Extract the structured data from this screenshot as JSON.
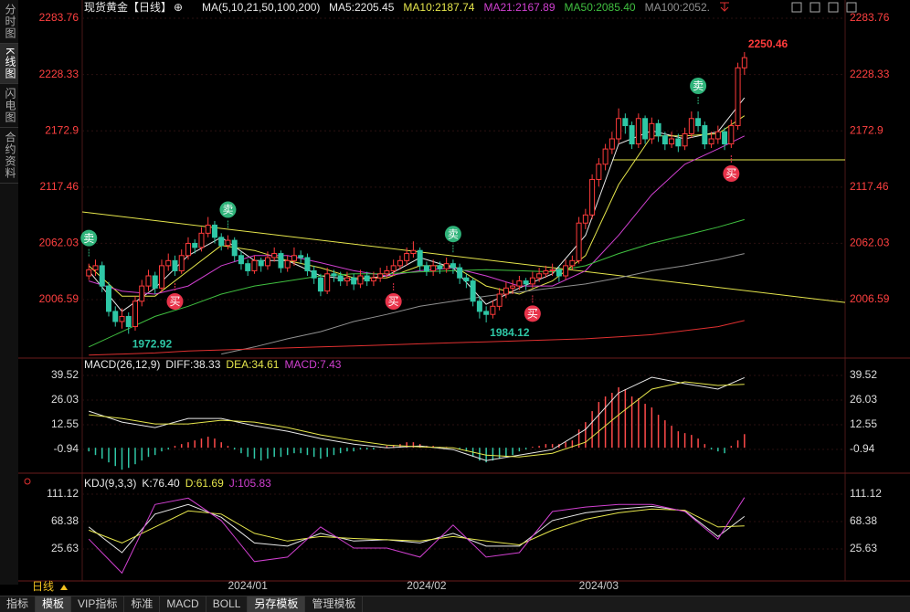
{
  "sidebar": [
    "分时图",
    "K线图",
    "闪电图",
    "合约资料"
  ],
  "sample_x": [
    0,
    5,
    10,
    15,
    20,
    25,
    30,
    35,
    40,
    45,
    50,
    55,
    60,
    65,
    70,
    75,
    80,
    85,
    90,
    95,
    99
  ],
  "price_panel": {
    "title": "现货黄金【日线】",
    "ma_params": "MA(5,10,21,50,100,200)",
    "ylim": [
      1950.8,
      2292.8
    ],
    "yticks": [
      2283.76,
      2228.33,
      2172.9,
      2117.46,
      2062.03,
      2006.59
    ],
    "tick_color": "#ff4040",
    "xlim": [
      -1,
      114.2
    ],
    "up_color": "#ff3b3b",
    "down_color": "#2ec7a6",
    "candles": [
      [
        2030,
        2042,
        2026,
        2036
      ],
      [
        2036,
        2046,
        2030,
        2040
      ],
      [
        2040,
        2044,
        2014,
        2020
      ],
      [
        2020,
        2024,
        1990,
        1995
      ],
      [
        1995,
        2000,
        1980,
        1985
      ],
      [
        1985,
        1998,
        1978,
        1990
      ],
      [
        1990,
        1994,
        1972.92,
        1980
      ],
      [
        1980,
        2010,
        1976,
        2005
      ],
      [
        2005,
        2026,
        2000,
        2020
      ],
      [
        2020,
        2036,
        2015,
        2030
      ],
      [
        2030,
        2034,
        2012,
        2018
      ],
      [
        2018,
        2046,
        2014,
        2040
      ],
      [
        2040,
        2052,
        2035,
        2045
      ],
      [
        2045,
        2050,
        2030,
        2035
      ],
      [
        2035,
        2056,
        2032,
        2050
      ],
      [
        2050,
        2068,
        2046,
        2062
      ],
      [
        2062,
        2066,
        2052,
        2058
      ],
      [
        2058,
        2078,
        2054,
        2072
      ],
      [
        2072,
        2088,
        2068,
        2080
      ],
      [
        2080,
        2084,
        2062,
        2068
      ],
      [
        2068,
        2072,
        2055,
        2060
      ],
      [
        2060,
        2070,
        2056,
        2065
      ],
      [
        2065,
        2068,
        2044,
        2050
      ],
      [
        2050,
        2054,
        2036,
        2042
      ],
      [
        2042,
        2046,
        2030,
        2035
      ],
      [
        2035,
        2050,
        2032,
        2045
      ],
      [
        2045,
        2048,
        2034,
        2040
      ],
      [
        2040,
        2054,
        2036,
        2048
      ],
      [
        2048,
        2058,
        2044,
        2052
      ],
      [
        2052,
        2055,
        2033,
        2038
      ],
      [
        2038,
        2050,
        2034,
        2045
      ],
      [
        2045,
        2058,
        2040,
        2050
      ],
      [
        2050,
        2055,
        2042,
        2048
      ],
      [
        2048,
        2052,
        2030,
        2035
      ],
      [
        2035,
        2040,
        2022,
        2028
      ],
      [
        2028,
        2032,
        2010,
        2015
      ],
      [
        2015,
        2038,
        2012,
        2032
      ],
      [
        2032,
        2036,
        2024,
        2030
      ],
      [
        2030,
        2034,
        2020,
        2025
      ],
      [
        2025,
        2034,
        2020,
        2028
      ],
      [
        2028,
        2032,
        2016,
        2022
      ],
      [
        2022,
        2036,
        2018,
        2030
      ],
      [
        2030,
        2034,
        2020,
        2025
      ],
      [
        2025,
        2034,
        2020,
        2028
      ],
      [
        2028,
        2038,
        2024,
        2032
      ],
      [
        2032,
        2040,
        2028,
        2035
      ],
      [
        2035,
        2046,
        2030,
        2040
      ],
      [
        2040,
        2050,
        2036,
        2045
      ],
      [
        2045,
        2058,
        2040,
        2052
      ],
      [
        2052,
        2064,
        2048,
        2055
      ],
      [
        2055,
        2058,
        2035,
        2040
      ],
      [
        2040,
        2044,
        2030,
        2035
      ],
      [
        2035,
        2046,
        2030,
        2040
      ],
      [
        2040,
        2044,
        2032,
        2037
      ],
      [
        2037,
        2048,
        2033,
        2042
      ],
      [
        2042,
        2046,
        2032,
        2038
      ],
      [
        2038,
        2042,
        2022,
        2028
      ],
      [
        2028,
        2032,
        2018,
        2025
      ],
      [
        2025,
        2028,
        2000,
        2005
      ],
      [
        2005,
        2010,
        1988,
        1995
      ],
      [
        1995,
        2000,
        1984.12,
        1992
      ],
      [
        1992,
        2006,
        1988,
        2000
      ],
      [
        2000,
        2018,
        1996,
        2012
      ],
      [
        2012,
        2024,
        2008,
        2018
      ],
      [
        2018,
        2026,
        2012,
        2020
      ],
      [
        2020,
        2030,
        2016,
        2025
      ],
      [
        2025,
        2028,
        2016,
        2022
      ],
      [
        2022,
        2034,
        2018,
        2028
      ],
      [
        2028,
        2038,
        2024,
        2032
      ],
      [
        2032,
        2040,
        2028,
        2035
      ],
      [
        2035,
        2042,
        2030,
        2036
      ],
      [
        2036,
        2040,
        2024,
        2030
      ],
      [
        2030,
        2046,
        2026,
        2040
      ],
      [
        2040,
        2050,
        2036,
        2045
      ],
      [
        2045,
        2088,
        2042,
        2082
      ],
      [
        2082,
        2096,
        2076,
        2090
      ],
      [
        2090,
        2130,
        2086,
        2125
      ],
      [
        2125,
        2146,
        2118,
        2140
      ],
      [
        2140,
        2160,
        2134,
        2155
      ],
      [
        2155,
        2172,
        2150,
        2165
      ],
      [
        2165,
        2195,
        2160,
        2185
      ],
      [
        2185,
        2190,
        2170,
        2178
      ],
      [
        2178,
        2182,
        2155,
        2160
      ],
      [
        2160,
        2190,
        2156,
        2185
      ],
      [
        2185,
        2188,
        2160,
        2165
      ],
      [
        2165,
        2186,
        2160,
        2180
      ],
      [
        2180,
        2184,
        2162,
        2168
      ],
      [
        2168,
        2172,
        2154,
        2160
      ],
      [
        2160,
        2172,
        2156,
        2165
      ],
      [
        2165,
        2170,
        2152,
        2158
      ],
      [
        2158,
        2176,
        2154,
        2170
      ],
      [
        2170,
        2192,
        2166,
        2185
      ],
      [
        2185,
        2192,
        2172,
        2178
      ],
      [
        2178,
        2182,
        2155,
        2160
      ],
      [
        2160,
        2172,
        2156,
        2165
      ],
      [
        2165,
        2178,
        2160,
        2172
      ],
      [
        2172,
        2176,
        2154,
        2160
      ],
      [
        2160,
        2184,
        2156,
        2178
      ],
      [
        2178,
        2240,
        2174,
        2235
      ],
      [
        2235,
        2250.46,
        2228,
        2245
      ]
    ],
    "ma": [
      {
        "label": "MA5:2205.45",
        "color": "#e8e8e8",
        "values": [
          2035,
          1995,
          2018,
          2050,
          2068,
          2045,
          2045,
          2030,
          2026,
          2030,
          2048,
          2038,
          2002,
          2018,
          2032,
          2070,
          2160,
          2173,
          2165,
          2172,
          2205.45
        ]
      },
      {
        "label": "MA10:2187.74",
        "color": "#e6e64c",
        "values": [
          2040,
          2010,
          2010,
          2035,
          2060,
          2055,
          2045,
          2038,
          2028,
          2028,
          2040,
          2040,
          2020,
          2012,
          2025,
          2050,
          2120,
          2168,
          2168,
          2170,
          2187.74
        ]
      },
      {
        "label": "MA21:2167.89",
        "color": "#d040d0",
        "values": [
          2025,
          2015,
          2012,
          2020,
          2040,
          2050,
          2050,
          2043,
          2035,
          2030,
          2035,
          2038,
          2030,
          2020,
          2020,
          2035,
          2070,
          2110,
          2140,
          2155,
          2167.89
        ]
      },
      {
        "label": "MA50:2085.40",
        "color": "#40c040",
        "values": [
          1960,
          1975,
          1990,
          2000,
          2012,
          2020,
          2025,
          2030,
          2032,
          2032,
          2034,
          2035,
          2036,
          2035,
          2034,
          2040,
          2052,
          2062,
          2070,
          2078,
          2085.4
        ]
      },
      {
        "label": "MA100:2052.",
        "color": "#909090",
        "values": [
          null,
          null,
          null,
          null,
          1953,
          1960,
          1968,
          1975,
          1985,
          1992,
          2000,
          2005,
          2010,
          2014,
          2018,
          2022,
          2028,
          2035,
          2040,
          2046,
          2052
        ]
      },
      {
        "color": "#e03030",
        "values": [
          1952,
          1953,
          1954,
          1956,
          1957,
          1958,
          1959,
          1960,
          1961,
          1962,
          1963,
          1964,
          1965,
          1966,
          1967,
          1968,
          1970,
          1972,
          1976,
          1980,
          1986
        ]
      }
    ],
    "trendlines": [
      {
        "color": "#e6e64c",
        "x": [
          -1,
          114.2
        ],
        "values": [
          2093,
          2003.8
        ]
      },
      {
        "color": "#e6e64c",
        "x": [
          79,
          114.2
        ],
        "values": [
          2144.3,
          2144.3
        ]
      }
    ],
    "sell_signals": {
      "label": "卖",
      "color": "#2fb37a",
      "index": [
        0,
        21,
        55,
        92
      ]
    },
    "buy_signals": {
      "label": "买",
      "color": "#e8334a",
      "index": [
        13,
        46,
        67,
        97
      ]
    },
    "x_labels": {
      "index": [
        24,
        51,
        77
      ],
      "labels": [
        "2024/01",
        "2024/02",
        "2024/03"
      ]
    }
  },
  "macd_panel": {
    "header": [
      {
        "text": "MACD(26,12,9)",
        "color": "#e8e8e8"
      },
      {
        "text": "DIFF:38.33",
        "color": "#e8e8e8"
      },
      {
        "text": "DEA:34.61",
        "color": "#e6e64c"
      },
      {
        "text": "MACD:7.43",
        "color": "#d040d0"
      }
    ],
    "ylim": [
      -12.4,
      46
    ],
    "yticks": [
      39.52,
      26.03,
      12.55,
      -0.94
    ],
    "up_color": "#ff4a4a",
    "down_color": "#2ec7a6",
    "histogram": [
      -2,
      -4,
      -6,
      -8,
      -10,
      -12,
      -11,
      -9,
      -7,
      -5,
      -4,
      -2,
      -1,
      1,
      2,
      3,
      4,
      5,
      6,
      5,
      3,
      1,
      -1,
      -3,
      -5,
      -6,
      -7,
      -6,
      -5,
      -5,
      -4,
      -3,
      -3,
      -4,
      -5,
      -6,
      -5,
      -4,
      -3,
      -2,
      -2,
      -1,
      -1,
      -1,
      0.5,
      1,
      1.5,
      2,
      3,
      3,
      2,
      1,
      1,
      0.5,
      0.5,
      0,
      -1,
      -2,
      -5,
      -7,
      -8,
      -7,
      -6,
      -5,
      -4,
      -2,
      -1,
      0.5,
      1,
      2,
      2,
      2,
      3,
      4,
      10,
      14,
      20,
      25,
      28,
      30,
      33,
      32,
      28,
      27,
      24,
      22,
      18,
      15,
      12,
      9,
      8,
      7,
      5,
      2,
      -1,
      -2,
      -3,
      1,
      4,
      7.43
    ],
    "lines": [
      {
        "color": "#e8e8e8",
        "values": [
          20,
          14,
          11,
          16,
          16,
          12,
          9,
          5,
          2,
          0,
          1,
          -1,
          -7,
          -4,
          -1,
          10,
          30,
          38.5,
          35,
          32,
          38.33
        ]
      },
      {
        "color": "#e6e64c",
        "values": [
          18,
          16,
          13,
          13,
          15,
          14,
          11,
          7,
          4,
          1.5,
          0.5,
          0,
          -4,
          -5,
          -3,
          3,
          18,
          32,
          36,
          34,
          34.61
        ]
      }
    ]
  },
  "kdj_panel": {
    "header": [
      {
        "text": "KDJ(9,3,3)",
        "color": "#e8e8e8"
      },
      {
        "text": "K:76.40",
        "color": "#e8e8e8"
      },
      {
        "text": "D:61.69",
        "color": "#e6e64c"
      },
      {
        "text": "J:105.83",
        "color": "#d040d0"
      }
    ],
    "ylim": [
      -22.8,
      133.9
    ],
    "yticks": [
      111.12,
      68.38,
      25.63
    ],
    "lines": [
      {
        "color": "#e8e8e8",
        "values": [
          60,
          20,
          80,
          95,
          75,
          35,
          30,
          50,
          38,
          40,
          35,
          50,
          30,
          30,
          70,
          82,
          88,
          92,
          85,
          45,
          76.4
        ]
      },
      {
        "color": "#e6e64c",
        "values": [
          55,
          35,
          60,
          85,
          80,
          50,
          38,
          45,
          42,
          40,
          38,
          45,
          38,
          32,
          55,
          72,
          82,
          88,
          86,
          60,
          61.69
        ]
      },
      {
        "color": "#d040d0",
        "values": [
          41,
          -12,
          95,
          105,
          70,
          6,
          13,
          60,
          27,
          27,
          13,
          63,
          13,
          20,
          84,
          91,
          95,
          95,
          84,
          41,
          105.83
        ]
      }
    ]
  },
  "period": "日线",
  "toolbar": [
    "指标",
    "模板",
    "VIP指标",
    "标准",
    "MACD",
    "BOLL",
    "另存模板",
    "管理模板"
  ]
}
